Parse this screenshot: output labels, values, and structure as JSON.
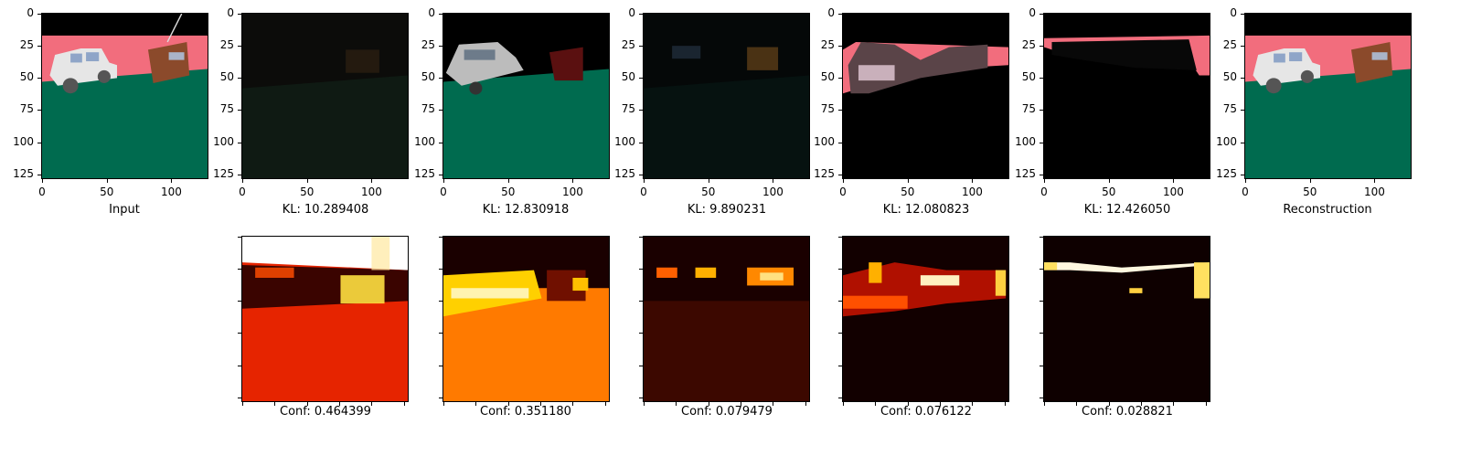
{
  "top_row": {
    "tick_labels_y": [
      "0",
      "25",
      "50",
      "75",
      "100",
      "125"
    ],
    "tick_labels_x": [
      "0",
      "50",
      "100"
    ],
    "captions": [
      "Input",
      "KL: 10.289408",
      "KL: 12.830918",
      "KL: 9.890231",
      "KL: 12.080823",
      "KL: 12.426050",
      "Reconstruction"
    ]
  },
  "bottom_row": {
    "captions": [
      "Conf: 0.464399",
      "Conf: 0.351180",
      "Conf: 0.079479",
      "Conf: 0.076122",
      "Conf: 0.028821"
    ]
  },
  "colors": {
    "pink_background": "#f26d7d",
    "green_floor": "#006b4f",
    "brown_object": "#8b4a2b",
    "car_white": "#e6e6e6",
    "heat_dark": "#120000",
    "heat_red": "#e62400",
    "heat_orange": "#ff7a00",
    "heat_yellow": "#ffe040"
  }
}
